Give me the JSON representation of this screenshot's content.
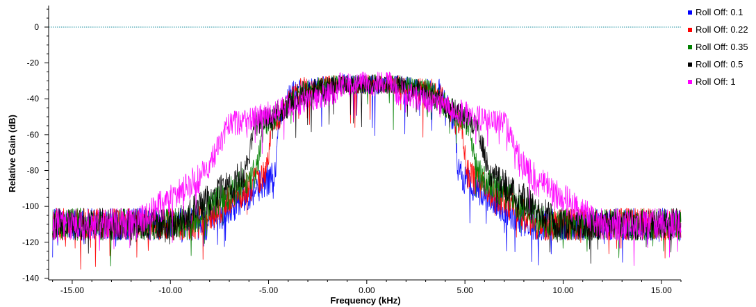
{
  "chart_data": {
    "type": "line",
    "title": "",
    "xlabel": "Frequency (kHz)",
    "ylabel": "Relative Gain (dB)",
    "xlim": [
      -16.2,
      16.0
    ],
    "ylim": [
      -141,
      12
    ],
    "x_ticks": [
      -15,
      -10,
      -5,
      0,
      5,
      10,
      15
    ],
    "x_tick_labels": [
      "-15.00",
      "-10.00",
      "-5.00",
      "0.00",
      "5.00",
      "10.00",
      "15.00"
    ],
    "y_ticks": [
      0,
      -20,
      -40,
      -60,
      -80,
      -100,
      -120,
      -140
    ],
    "y_tick_labels": [
      "0",
      "-20",
      "-40",
      "-60",
      "-80",
      "-100",
      "-120",
      "-140"
    ],
    "grid": false,
    "reference_line": {
      "y": 0,
      "color": "#1a8fa0"
    },
    "legend_position": "right",
    "series": [
      {
        "name": "Roll Off: 0.1",
        "color": "#0000ff",
        "rolloff": 0.1,
        "x": [
          -16,
          -4.2,
          -4.2,
          4.2,
          4.2,
          16
        ],
        "y": [
          -110,
          -110,
          -32,
          -32,
          -100,
          -110
        ]
      },
      {
        "name": "Roll Off: 0.22",
        "color": "#ff0000",
        "rolloff": 0.22,
        "x": [
          -16,
          -4.6,
          -4.6,
          4.6,
          4.6,
          16
        ],
        "y": [
          -110,
          -106,
          -32,
          -32,
          -100,
          -110
        ]
      },
      {
        "name": "Roll Off: 0.35",
        "color": "#008000",
        "rolloff": 0.35,
        "x": [
          -16,
          -5.1,
          -5.1,
          5.1,
          5.1,
          16
        ],
        "y": [
          -110,
          -104,
          -32,
          -32,
          -100,
          -110
        ]
      },
      {
        "name": "Roll Off: 0.5",
        "color": "#000000",
        "rolloff": 0.5,
        "x": [
          -16,
          -5.6,
          -5.6,
          5.6,
          5.6,
          16
        ],
        "y": [
          -110,
          -102,
          -32,
          -32,
          -100,
          -110
        ]
      },
      {
        "name": "Roll Off: 1",
        "color": "#ff00ff",
        "rolloff": 1,
        "x": [
          -16,
          -7.9,
          -7.9,
          7.9,
          7.9,
          16
        ],
        "y": [
          -110,
          -100,
          -32,
          -32,
          -100,
          -110
        ]
      }
    ]
  }
}
